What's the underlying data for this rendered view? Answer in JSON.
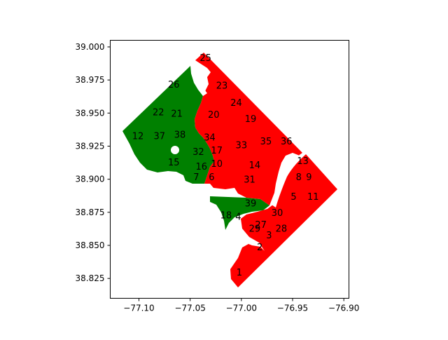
{
  "map": {
    "x_axis": {
      "ticks": [
        -77.1,
        -77.05,
        -77.0,
        -76.95,
        -76.9
      ],
      "tick_labels": [
        "−77.10",
        "−77.05",
        "−77.00",
        "−76.95",
        "−76.90"
      ],
      "range": [
        -77.128,
        -76.895
      ]
    },
    "y_axis": {
      "ticks": [
        38.825,
        38.85,
        38.875,
        38.9,
        38.925,
        38.95,
        38.975,
        39.0
      ],
      "tick_labels": [
        "38.825",
        "38.850",
        "38.875",
        "38.900",
        "38.925",
        "38.950",
        "38.975",
        "39.000"
      ],
      "range": [
        38.81,
        39.005
      ]
    },
    "colors": {
      "group_a": "#008000",
      "group_b": "#ff0000"
    },
    "clusters": [
      {
        "label": "1",
        "lon": -77.002,
        "lat": 38.83,
        "group": "group_b"
      },
      {
        "label": "2",
        "lon": -76.982,
        "lat": 38.849,
        "group": "group_b"
      },
      {
        "label": "3",
        "lon": -76.973,
        "lat": 38.858,
        "group": "group_b"
      },
      {
        "label": "4",
        "lon": -77.003,
        "lat": 38.872,
        "group": "group_a"
      },
      {
        "label": "5",
        "lon": -76.949,
        "lat": 38.887,
        "group": "group_b"
      },
      {
        "label": "6",
        "lon": -77.029,
        "lat": 38.902,
        "group": "group_b"
      },
      {
        "label": "7",
        "lon": -77.044,
        "lat": 38.902,
        "group": "group_a"
      },
      {
        "label": "8",
        "lon": -76.944,
        "lat": 38.902,
        "group": "group_b"
      },
      {
        "label": "9",
        "lon": -76.934,
        "lat": 38.902,
        "group": "group_b"
      },
      {
        "label": "10",
        "lon": -77.024,
        "lat": 38.912,
        "group": "group_b"
      },
      {
        "label": "11",
        "lon": -76.93,
        "lat": 38.887,
        "group": "group_b"
      },
      {
        "label": "12",
        "lon": -77.101,
        "lat": 38.933,
        "group": "group_a"
      },
      {
        "label": "13",
        "lon": -76.94,
        "lat": 38.914,
        "group": "group_b"
      },
      {
        "label": "14",
        "lon": -76.987,
        "lat": 38.911,
        "group": "group_b"
      },
      {
        "label": "15",
        "lon": -77.066,
        "lat": 38.913,
        "group": "group_a"
      },
      {
        "label": "16",
        "lon": -77.039,
        "lat": 38.91,
        "group": "group_b"
      },
      {
        "label": "17",
        "lon": -77.024,
        "lat": 38.922,
        "group": "group_b"
      },
      {
        "label": "18",
        "lon": -77.015,
        "lat": 38.873,
        "group": "group_a"
      },
      {
        "label": "19",
        "lon": -76.991,
        "lat": 38.946,
        "group": "group_b"
      },
      {
        "label": "20",
        "lon": -77.027,
        "lat": 38.949,
        "group": "group_b"
      },
      {
        "label": "21",
        "lon": -77.063,
        "lat": 38.95,
        "group": "group_a"
      },
      {
        "label": "22",
        "lon": -77.081,
        "lat": 38.951,
        "group": "group_a"
      },
      {
        "label": "23",
        "lon": -77.019,
        "lat": 38.971,
        "group": "group_b"
      },
      {
        "label": "24",
        "lon": -77.005,
        "lat": 38.958,
        "group": "group_b"
      },
      {
        "label": "25",
        "lon": -77.035,
        "lat": 38.992,
        "group": "group_b"
      },
      {
        "label": "26",
        "lon": -77.066,
        "lat": 38.972,
        "group": "group_a"
      },
      {
        "label": "27",
        "lon": -76.981,
        "lat": 38.866,
        "group": "group_b"
      },
      {
        "label": "28",
        "lon": -76.961,
        "lat": 38.863,
        "group": "group_b"
      },
      {
        "label": "29",
        "lon": -76.987,
        "lat": 38.863,
        "group": "group_b"
      },
      {
        "label": "30",
        "lon": -76.965,
        "lat": 38.875,
        "group": "group_b"
      },
      {
        "label": "31",
        "lon": -76.992,
        "lat": 38.9,
        "group": "group_b"
      },
      {
        "label": "32",
        "lon": -77.042,
        "lat": 38.921,
        "group": "group_a"
      },
      {
        "label": "33",
        "lon": -77.0,
        "lat": 38.926,
        "group": "group_b"
      },
      {
        "label": "34",
        "lon": -77.031,
        "lat": 38.932,
        "group": "group_b"
      },
      {
        "label": "35",
        "lon": -76.976,
        "lat": 38.929,
        "group": "group_b"
      },
      {
        "label": "36",
        "lon": -76.956,
        "lat": 38.929,
        "group": "group_b"
      },
      {
        "label": "37",
        "lon": -77.08,
        "lat": 38.933,
        "group": "group_a"
      },
      {
        "label": "38",
        "lon": -77.06,
        "lat": 38.934,
        "group": "group_a"
      },
      {
        "label": "39",
        "lon": -76.991,
        "lat": 38.882,
        "group": "group_b"
      }
    ]
  }
}
